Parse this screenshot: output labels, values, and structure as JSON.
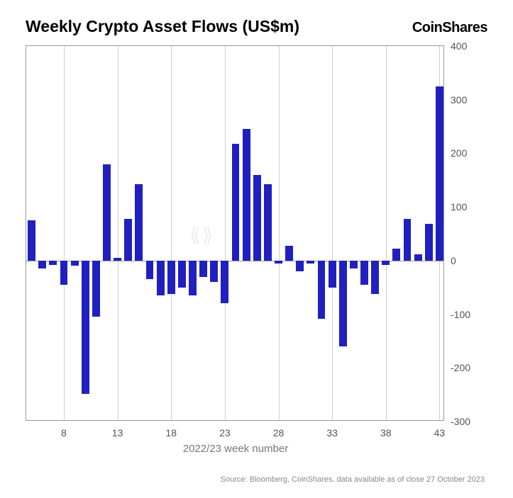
{
  "title": "Weekly Crypto Asset Flows (US$m)",
  "brand": "CoinShares",
  "x_axis_title": "2022/23 week number",
  "source_text": "Source: Bloomberg, CoinShares, data available as of close 27 October 2023",
  "chart": {
    "type": "bar",
    "bar_color": "#2020c0",
    "background_color": "#ffffff",
    "grid_color": "#d0d0d0",
    "axis_color": "#999999",
    "ylim": [
      -300,
      400
    ],
    "ytick_step": 100,
    "yticks": [
      -300,
      -200,
      -100,
      0,
      100,
      200,
      300,
      400
    ],
    "x_first": 5,
    "x_last": 43,
    "xticks": [
      8,
      13,
      18,
      23,
      28,
      33,
      38,
      43
    ],
    "bar_width_ratio": 0.72,
    "values": [
      75,
      -15,
      -8,
      -45,
      -10,
      -248,
      -105,
      180,
      5,
      78,
      142,
      -35,
      -65,
      -62,
      -50,
      -65,
      -30,
      -40,
      -80,
      218,
      246,
      160,
      142,
      -5,
      28,
      -20,
      -5,
      -108,
      -50,
      -160,
      -15,
      -45,
      -62,
      -8,
      22,
      78,
      12,
      68,
      325
    ]
  },
  "title_fontsize": 23,
  "brand_fontsize": 20,
  "tick_fontsize": 14,
  "axis_title_fontsize": 15,
  "source_fontsize": 11,
  "text_color_title": "#000000",
  "text_color_ticks": "#555555",
  "text_color_axis_title": "#777777",
  "text_color_source": "#888888"
}
